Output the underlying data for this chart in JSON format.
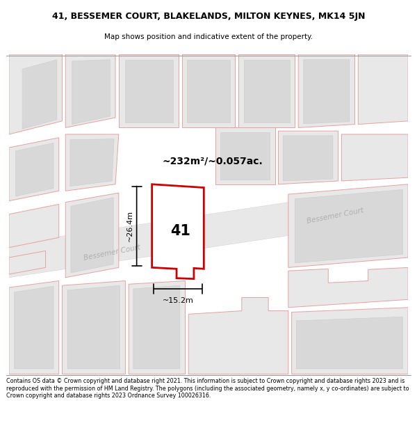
{
  "title_line1": "41, BESSEMER COURT, BLAKELANDS, MILTON KEYNES, MK14 5JN",
  "title_line2": "Map shows position and indicative extent of the property.",
  "footer_text": "Contains OS data © Crown copyright and database right 2021. This information is subject to Crown copyright and database rights 2023 and is reproduced with the permission of HM Land Registry. The polygons (including the associated geometry, namely x, y co-ordinates) are subject to Crown copyright and database rights 2023 Ordnance Survey 100026316.",
  "area_label": "~232m²/~0.057ac.",
  "width_label": "~15.2m",
  "height_label": "~26.4m",
  "property_number": "41",
  "map_bg": "#f2f2f2",
  "building_outline_color": "#e8a0a0",
  "building_fill_light": "#e8e8e8",
  "building_fill_dark": "#d8d8d8",
  "property_outline_color": "#cc0000",
  "property_fill_color": "#ffffff",
  "road_label_color": "#aaaaaa",
  "dim_line_color": "#000000",
  "text_color": "#000000"
}
